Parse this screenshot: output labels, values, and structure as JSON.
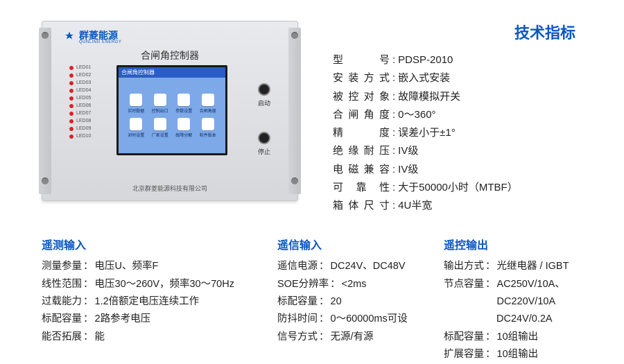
{
  "device": {
    "logo_main": "群菱能源",
    "logo_sub": "QUNLING ENERGY",
    "panel_title": "合闸角控制器",
    "leds": [
      "LED01",
      "LED02",
      "LED03",
      "LED04",
      "LED05",
      "LED06",
      "LED07",
      "LED08",
      "LED09",
      "LED10"
    ],
    "screen_title": "合闸角控制器",
    "screen_icons_row1": [
      "实时数据",
      "控制出口",
      "参数设置",
      "合闸角度"
    ],
    "screen_icons_row2": [
      "对时设置",
      "厂家设置",
      "故障分解",
      "软件版本"
    ],
    "btn_start": "启动",
    "btn_stop": "停止",
    "footer": "北京群菱能源科技有限公司"
  },
  "spec_title": "技术指标",
  "specs": [
    {
      "label": "型　　号",
      "value": "PDSP-2010"
    },
    {
      "label": "安装方式",
      "value": "嵌入式安装"
    },
    {
      "label": "被控对象",
      "value": "故障模拟开关"
    },
    {
      "label": "合闸角度",
      "value": " 0～360°"
    },
    {
      "label": "精　　度",
      "value": "误差小于±1°"
    },
    {
      "label": "绝缘耐压",
      "value": "IV级"
    },
    {
      "label": "电磁兼容",
      "value": "IV级"
    },
    {
      "label": "可 靠 性",
      "value": "大于50000小时（MTBF）"
    },
    {
      "label": "箱体尺寸",
      "value": "4U半宽"
    }
  ],
  "col1": {
    "title": "遥测输入",
    "rows": [
      {
        "label": "测量参量",
        "value": "电压U、频率F"
      },
      {
        "label": "线性范围",
        "value": "电压30～260V，频率30～70Hz"
      },
      {
        "label": "过载能力",
        "value": "1.2倍额定电压连续工作"
      },
      {
        "label": "标配容量",
        "value": "2路参考电压"
      },
      {
        "label": "能否拓展",
        "value": "能"
      }
    ]
  },
  "col2": {
    "title": "遥信输入",
    "rows": [
      {
        "label": "遥信电源",
        "value": "DC24V、DC48V"
      },
      {
        "label": "SOE分辨率",
        "value": "<2ms"
      },
      {
        "label": "标配容量",
        "value": "20"
      },
      {
        "label": "防抖时间",
        "value": "0～60000ms可设"
      },
      {
        "label": "信号方式",
        "value": "无源/有源"
      }
    ]
  },
  "col3": {
    "title": "遥控输出",
    "rows": [
      {
        "label": "输出方式",
        "value": "光继电器 / IGBT"
      },
      {
        "label": "节点容量",
        "value": "AC250V/10A、DC220V/10A"
      },
      {
        "label": "",
        "value": "DC24V/0.2A"
      },
      {
        "label": "标配容量",
        "value": "10组输出"
      },
      {
        "label": "扩展容量",
        "value": "10组输出"
      }
    ]
  }
}
